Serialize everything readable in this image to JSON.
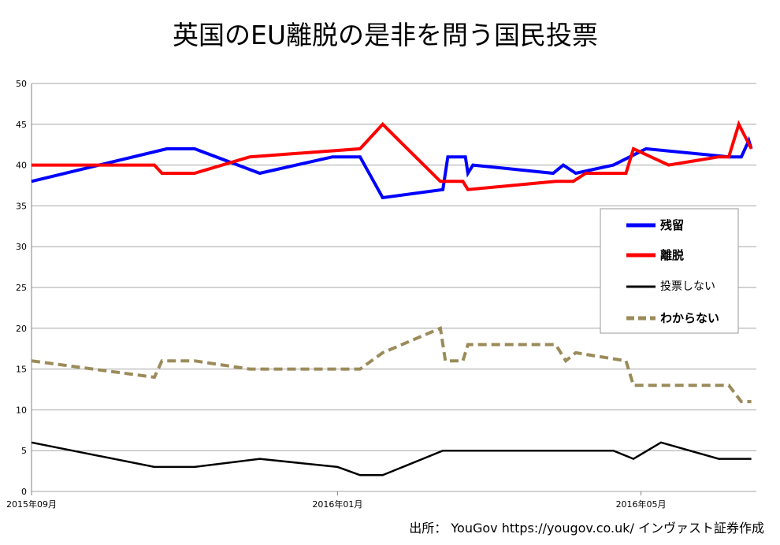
{
  "source_note": "出所： YouGov  https://yougov.co.uk/ インヴァスト証券作成",
  "chart_data": {
    "type": "line",
    "title": "英国のEU離脱の是非を問う国民投票",
    "xlabel": "",
    "ylabel": "",
    "ylim": [
      0,
      50
    ],
    "yticks": [
      0,
      5,
      10,
      15,
      20,
      25,
      30,
      35,
      40,
      45,
      50
    ],
    "xlim": [
      "2015-09-01",
      "2016-06-16"
    ],
    "xticks": [
      {
        "date": "2015-09-01",
        "label": "2015年09月"
      },
      {
        "date": "2016-01-01",
        "label": "2016年01月"
      },
      {
        "date": "2016-05-01",
        "label": "2016年05月"
      }
    ],
    "grid": "horizontal",
    "legend_position": "right",
    "series": [
      {
        "name": "残留",
        "color": "#0000ff",
        "style": "solid",
        "points": [
          [
            "2015-09-01",
            38
          ],
          [
            "2015-10-25",
            42
          ],
          [
            "2015-11-05",
            42
          ],
          [
            "2015-12-01",
            39
          ],
          [
            "2015-12-30",
            41
          ],
          [
            "2016-01-10",
            41
          ],
          [
            "2016-01-19",
            36
          ],
          [
            "2016-02-12",
            37
          ],
          [
            "2016-02-14",
            41
          ],
          [
            "2016-02-21",
            41
          ],
          [
            "2016-02-22",
            39
          ],
          [
            "2016-02-24",
            40
          ],
          [
            "2016-03-27",
            39
          ],
          [
            "2016-03-31",
            40
          ],
          [
            "2016-04-05",
            39
          ],
          [
            "2016-04-20",
            40
          ],
          [
            "2016-05-03",
            42
          ],
          [
            "2016-06-05",
            41
          ],
          [
            "2016-06-10",
            41
          ],
          [
            "2016-06-13",
            43
          ],
          [
            "2016-06-14",
            42
          ]
        ]
      },
      {
        "name": "離脱",
        "color": "#ff0000",
        "style": "solid",
        "points": [
          [
            "2015-09-01",
            40
          ],
          [
            "2015-10-20",
            40
          ],
          [
            "2015-10-23",
            39
          ],
          [
            "2015-11-05",
            39
          ],
          [
            "2015-11-27",
            41
          ],
          [
            "2016-01-10",
            42
          ],
          [
            "2016-01-19",
            45
          ],
          [
            "2016-02-11",
            38
          ],
          [
            "2016-02-20",
            38
          ],
          [
            "2016-02-22",
            37
          ],
          [
            "2016-03-28",
            38
          ],
          [
            "2016-04-04",
            38
          ],
          [
            "2016-04-09",
            39
          ],
          [
            "2016-04-25",
            39
          ],
          [
            "2016-04-28",
            42
          ],
          [
            "2016-05-12",
            40
          ],
          [
            "2016-06-01",
            41
          ],
          [
            "2016-06-05",
            41
          ],
          [
            "2016-06-09",
            45
          ],
          [
            "2016-06-14",
            42
          ]
        ]
      },
      {
        "name": "投票しない",
        "color": "#000000",
        "style": "solid",
        "points": [
          [
            "2015-09-01",
            6
          ],
          [
            "2015-10-20",
            3
          ],
          [
            "2015-11-05",
            3
          ],
          [
            "2015-12-01",
            4
          ],
          [
            "2016-01-01",
            3
          ],
          [
            "2016-01-10",
            2
          ],
          [
            "2016-01-19",
            2
          ],
          [
            "2016-02-12",
            5
          ],
          [
            "2016-03-28",
            5
          ],
          [
            "2016-04-20",
            5
          ],
          [
            "2016-04-28",
            4
          ],
          [
            "2016-05-09",
            6
          ],
          [
            "2016-06-01",
            4
          ],
          [
            "2016-06-14",
            4
          ]
        ]
      },
      {
        "name": "わからない",
        "color": "#9b8b5a",
        "style": "dashed",
        "points": [
          [
            "2015-09-01",
            16
          ],
          [
            "2015-10-20",
            14
          ],
          [
            "2015-10-23",
            16
          ],
          [
            "2015-11-05",
            16
          ],
          [
            "2015-11-27",
            15
          ],
          [
            "2016-01-10",
            15
          ],
          [
            "2016-01-19",
            17
          ],
          [
            "2016-02-11",
            20
          ],
          [
            "2016-02-13",
            16
          ],
          [
            "2016-02-20",
            16
          ],
          [
            "2016-02-22",
            18
          ],
          [
            "2016-03-28",
            18
          ],
          [
            "2016-04-01",
            16
          ],
          [
            "2016-04-05",
            17
          ],
          [
            "2016-04-25",
            16
          ],
          [
            "2016-04-28",
            13
          ],
          [
            "2016-06-05",
            13
          ],
          [
            "2016-06-10",
            11
          ],
          [
            "2016-06-14",
            11
          ]
        ]
      }
    ]
  }
}
